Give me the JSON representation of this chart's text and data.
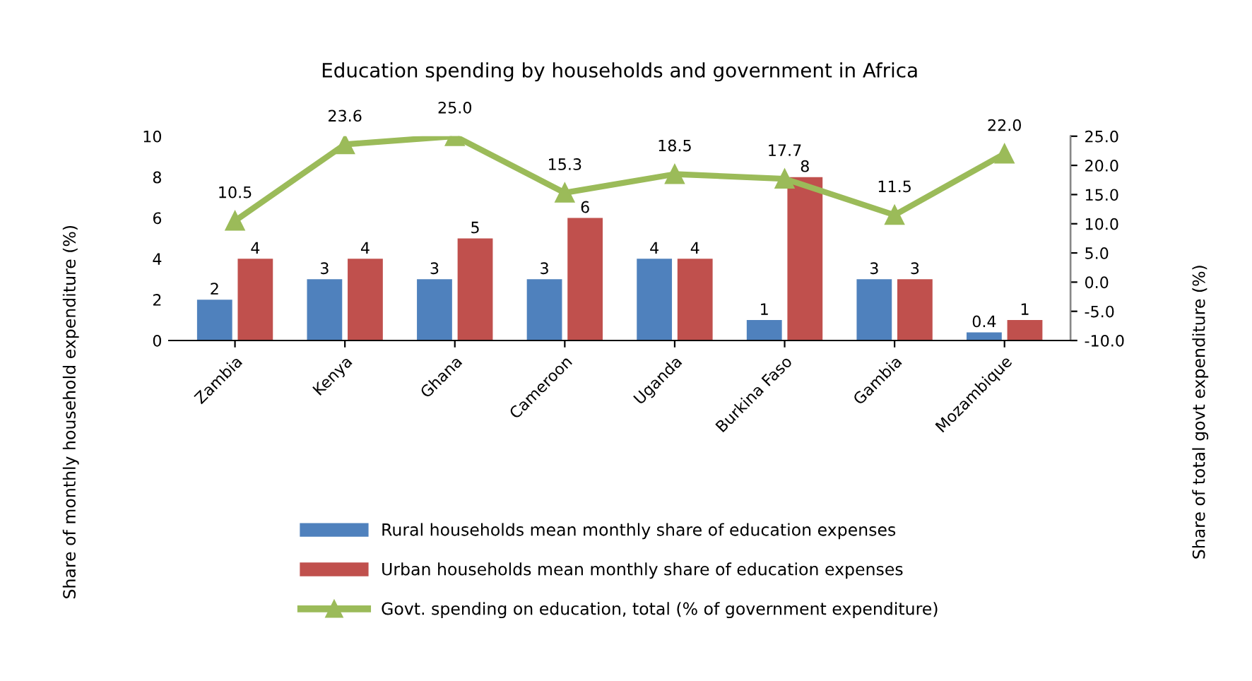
{
  "chart_data": {
    "type": "bar",
    "title": "Education spending by households and government in Africa",
    "ylabel": "Share of monthly household expenditure (%)",
    "y2label": "Share of total govt expenditure (%)",
    "categories": [
      "Zambia",
      "Kenya",
      "Ghana",
      "Cameroon",
      "Uganda",
      "Burkina Faso",
      "Gambia",
      "Mozambique"
    ],
    "series": [
      {
        "name": "Rural households mean monthly share of education expenses",
        "color": "#4f81bd",
        "values": [
          2,
          3,
          3,
          3,
          4,
          1,
          3,
          0.4
        ]
      },
      {
        "name": "Urban households mean monthly share of education expenses",
        "color": "#c0504d",
        "values": [
          4,
          4,
          5,
          6,
          4,
          8,
          3,
          1
        ]
      },
      {
        "name": "Govt. spending on education, total (% of government expenditure)",
        "color": "#9bbb59",
        "type": "line",
        "axis": "y2",
        "marker": "triangle",
        "values": [
          10.5,
          23.6,
          25.0,
          15.3,
          18.5,
          17.7,
          11.5,
          22.0
        ],
        "value_labels": [
          "10.5",
          "23.6",
          "25.0",
          "15.3",
          "18.5",
          "17.7",
          "11.5",
          "22.0"
        ]
      }
    ],
    "data_labels": true,
    "ylim": [
      0,
      10
    ],
    "yticks": [
      0,
      2,
      4,
      6,
      8,
      10
    ],
    "y2lim": [
      -10,
      25
    ],
    "y2ticks": [
      {
        "value": -10,
        "label": "-10.0"
      },
      {
        "value": -5,
        "label": "-5.0"
      },
      {
        "value": 0,
        "label": "0.0"
      },
      {
        "value": 5,
        "label": "5.0"
      },
      {
        "value": 10,
        "label": "10.0"
      },
      {
        "value": 15,
        "label": "15.0"
      },
      {
        "value": 20,
        "label": "20.0"
      },
      {
        "value": 25,
        "label": "25.0"
      }
    ],
    "grid": false,
    "legend": "bottom"
  }
}
